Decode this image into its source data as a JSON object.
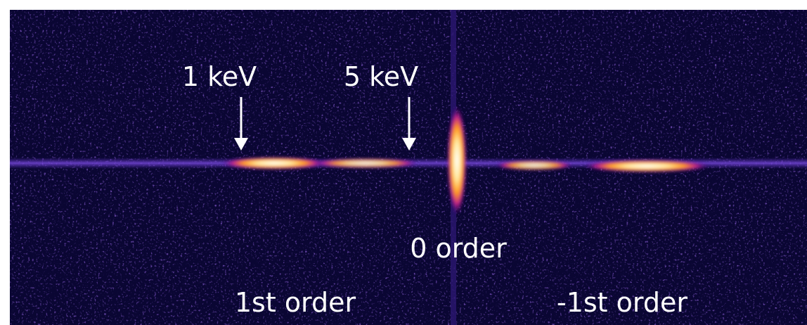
{
  "labels": {
    "energy_low": "1 keV",
    "energy_high": "5 keV",
    "zero_order": "0 order",
    "first_order": "1st order",
    "minus_first_order": "-1st order"
  }
}
